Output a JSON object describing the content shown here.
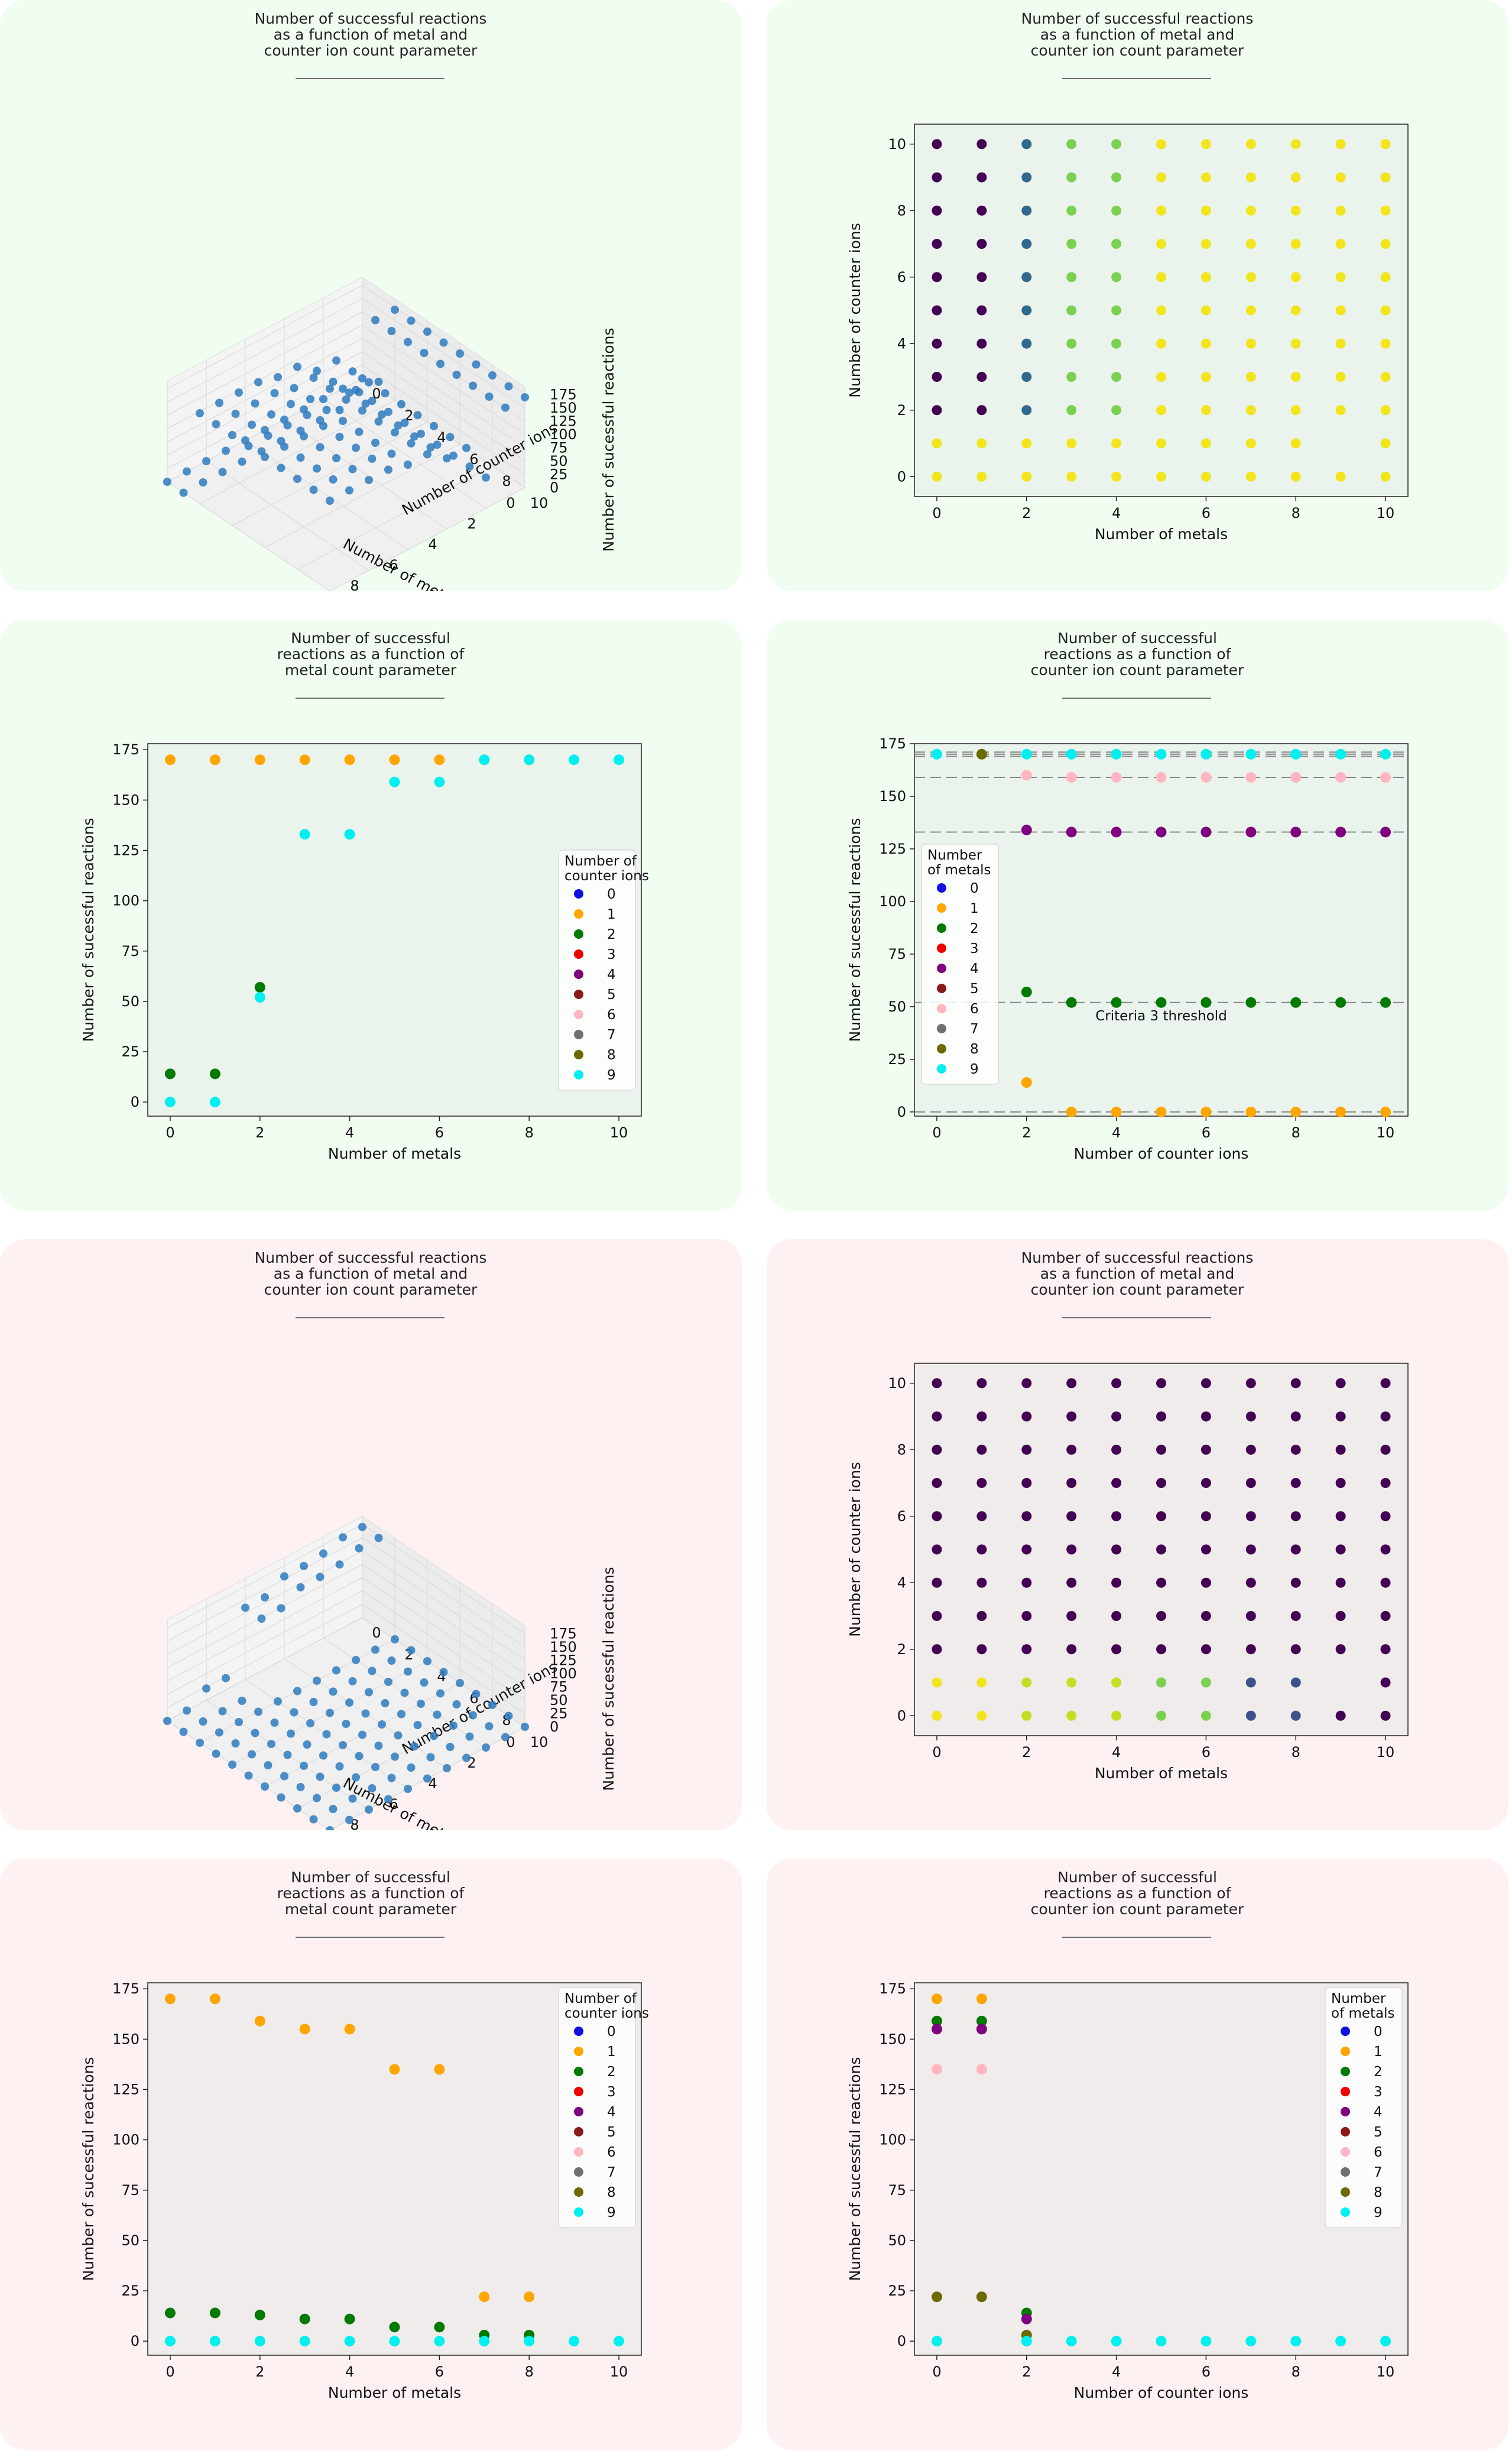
{
  "colors": {
    "legend": [
      "#1010e0",
      "#ffa500",
      "#007a00",
      "#ee0000",
      "#800080",
      "#8b1a1a",
      "#ffb6c1",
      "#707070",
      "#6b6b00",
      "#00f0f0"
    ],
    "scatter3d": "#2d7bbf",
    "green_bg": "#f2fdf2",
    "red_bg": "#fdf1f1"
  },
  "panels": [
    {
      "id": "p1",
      "title": [
        "Number of successful reactions",
        "as a function of metal and",
        "counter ion count parameter"
      ],
      "chart_data": {
        "type": "scatter3d",
        "xlabel": "Number of metals",
        "ylabel": "Number of counter ions",
        "zlabel": "Number of sucessful reactions",
        "x_ticks": [
          "0",
          "2",
          "4",
          "6",
          "8",
          "10"
        ],
        "y_ticks": [
          "0",
          "2",
          "4",
          "6",
          "8",
          "10"
        ],
        "z_ticks": [
          "0",
          "25",
          "50",
          "75",
          "100",
          "125",
          "150",
          "175"
        ],
        "zlim": [
          0,
          175
        ],
        "rule": "z(m,c): c==0 -> 0; c==1 -> 14 for m<=1 else 0; c>=2 -> [58,58,58,133,133,160,160,170,170,170,170][m] with m<=1 and c>=2 -> 170"
      }
    },
    {
      "id": "p2",
      "title": [
        "Number of successful reactions",
        "as a function of metal and",
        "counter ion count parameter"
      ],
      "chart_data": {
        "type": "scatter",
        "xlabel": "Number of metals",
        "ylabel": "Number of counter ions",
        "x_ticks": [
          "0",
          "2",
          "4",
          "6",
          "8",
          "10"
        ],
        "y_ticks": [
          "0",
          "2",
          "4",
          "6",
          "8",
          "10"
        ],
        "xlim": [
          -0.5,
          10.5
        ],
        "ylim": [
          -0.6,
          10.6
        ],
        "color_rows_bottom_to_top": [
          "YYYYYYYYYYY",
          "YYYYYYYYY-Y",
          "PPBGGYYYYYY",
          "PPBGGYYYYYY",
          "PPBGGYYYYYY",
          "PPBGGYYYYYY",
          "PPBGGYYYYYY",
          "PPBGGYYYYYY",
          "PPBGGYYYYYY",
          "PPBGGYYYYYY",
          "PPBGGYYYYYY"
        ],
        "color_map": {
          "Y": "#f2e51d",
          "P": "#440154",
          "B": "#31688e",
          "G": "#7ad151",
          "L": "#c2df23",
          "T": "#3b528b"
        }
      }
    },
    {
      "id": "p3",
      "title": [
        "Number of successful",
        "reactions as a function of",
        "metal count parameter"
      ],
      "chart_data": {
        "type": "scatter",
        "xlabel": "Number of metals",
        "ylabel": "Number of sucessful reactions",
        "x_ticks": [
          "0",
          "2",
          "4",
          "6",
          "8",
          "10"
        ],
        "y_ticks": [
          "0",
          "25",
          "50",
          "75",
          "100",
          "125",
          "150",
          "175"
        ],
        "xlim": [
          -0.5,
          10.5
        ],
        "ylim": [
          -7,
          178
        ],
        "legend_title": [
          "Number of",
          "counter ions"
        ],
        "legend_labels": [
          "0",
          "1",
          "2",
          "3",
          "4",
          "5",
          "6",
          "7",
          "8",
          "9"
        ],
        "legend_position": "center-right",
        "series": [
          {
            "name": "1",
            "x": [
              0,
              1,
              2,
              3,
              4,
              5,
              6,
              7,
              8
            ],
            "y": [
              170,
              170,
              170,
              170,
              170,
              170,
              170,
              170,
              170
            ]
          },
          {
            "name": "2",
            "x": [
              0,
              1,
              2
            ],
            "y": [
              14,
              14,
              57
            ]
          },
          {
            "name": "9",
            "x": [
              0,
              1,
              2,
              3,
              4,
              5,
              6,
              7,
              8,
              9,
              10
            ],
            "y": [
              0,
              0,
              52,
              133,
              133,
              159,
              159,
              170,
              170,
              170,
              170
            ]
          }
        ]
      }
    },
    {
      "id": "p4",
      "title": [
        "Number of successful",
        "reactions as a function of",
        "counter ion count parameter"
      ],
      "chart_data": {
        "type": "scatter",
        "xlabel": "Number of counter ions",
        "ylabel": "Number of sucessful reactions",
        "x_ticks": [
          "0",
          "2",
          "4",
          "6",
          "8",
          "10"
        ],
        "y_ticks": [
          "0",
          "25",
          "50",
          "75",
          "100",
          "125",
          "150",
          "175"
        ],
        "xlim": [
          -0.5,
          10.5
        ],
        "ylim": [
          -2,
          175
        ],
        "legend_title": [
          "Number",
          "of metals"
        ],
        "legend_labels": [
          "0",
          "1",
          "2",
          "3",
          "4",
          "5",
          "6",
          "7",
          "8",
          "9"
        ],
        "legend_position": "center-left",
        "hlines": [
          0,
          52,
          133,
          159,
          169,
          170,
          171
        ],
        "annotation": "Criteria 3 threshold",
        "series": [
          {
            "name": "1",
            "x": [
              2,
              3,
              4,
              5,
              6,
              7,
              8,
              9,
              10
            ],
            "y": [
              14,
              0,
              0,
              0,
              0,
              0,
              0,
              0,
              0
            ]
          },
          {
            "name": "2",
            "x": [
              2,
              3,
              4,
              5,
              6,
              7,
              8,
              9,
              10
            ],
            "y": [
              57,
              52,
              52,
              52,
              52,
              52,
              52,
              52,
              52
            ]
          },
          {
            "name": "4",
            "x": [
              2,
              3,
              4,
              5,
              6,
              7,
              8,
              9,
              10
            ],
            "y": [
              134,
              133,
              133,
              133,
              133,
              133,
              133,
              133,
              133
            ]
          },
          {
            "name": "6",
            "x": [
              2,
              3,
              4,
              5,
              6,
              7,
              8,
              9,
              10
            ],
            "y": [
              160,
              159,
              159,
              159,
              159,
              159,
              159,
              159,
              159
            ]
          },
          {
            "name": "8",
            "x": [
              1
            ],
            "y": [
              170
            ]
          },
          {
            "name": "9",
            "x": [
              0,
              2,
              3,
              4,
              5,
              6,
              7,
              8,
              9,
              10
            ],
            "y": [
              170,
              170,
              170,
              170,
              170,
              170,
              170,
              170,
              170,
              170
            ]
          }
        ]
      }
    },
    {
      "id": "p5",
      "title": [
        "Number of successful reactions",
        "as a function of metal and",
        "counter ion count parameter"
      ],
      "chart_data": {
        "type": "scatter3d",
        "xlabel": "Number of metals",
        "ylabel": "Number of counter ions",
        "zlabel": "Number of sucessful reactions",
        "x_ticks": [
          "0",
          "2",
          "4",
          "6",
          "8",
          "10"
        ],
        "y_ticks": [
          "0",
          "2",
          "4",
          "6",
          "8",
          "10"
        ],
        "z_ticks": [
          "0",
          "25",
          "50",
          "75",
          "100",
          "125",
          "150",
          "175"
        ],
        "zlim": [
          0,
          175
        ],
        "rule": "z(m,c): c==0 -> [170,170,159,155,155,135,135,22,22,0,0][m]; c==1 -> same but 0 for m>=7; c>=2 -> 0"
      }
    },
    {
      "id": "p6",
      "title": [
        "Number of successful reactions",
        "as a function of metal and",
        "counter ion count parameter"
      ],
      "chart_data": {
        "type": "scatter",
        "xlabel": "Number of metals",
        "ylabel": "Number of counter ions",
        "x_ticks": [
          "0",
          "2",
          "4",
          "6",
          "8",
          "10"
        ],
        "y_ticks": [
          "0",
          "2",
          "4",
          "6",
          "8",
          "10"
        ],
        "xlim": [
          -0.5,
          10.5
        ],
        "ylim": [
          -0.6,
          10.6
        ],
        "color_rows_bottom_to_top": [
          "YYLLLGGTTPP",
          "YYLLLGGTT-P",
          "PPPPPPPPPPP",
          "PPPPPPPPPPP",
          "PPPPPPPPPPP",
          "PPPPPPPPPPP",
          "PPPPPPPPPPP",
          "PPPPPPPPPPP",
          "PPPPPPPPPPP",
          "PPPPPPPPPPP",
          "PPPPPPPPPPP"
        ],
        "color_map": {
          "Y": "#f2e51d",
          "P": "#440154",
          "B": "#31688e",
          "G": "#7ad151",
          "L": "#c2df23",
          "T": "#3b528b"
        }
      }
    },
    {
      "id": "p7",
      "title": [
        "Number of successful",
        "reactions as a function of",
        "metal count parameter"
      ],
      "chart_data": {
        "type": "scatter",
        "xlabel": "Number of metals",
        "ylabel": "Number of sucessful reactions",
        "x_ticks": [
          "0",
          "2",
          "4",
          "6",
          "8",
          "10"
        ],
        "y_ticks": [
          "0",
          "25",
          "50",
          "75",
          "100",
          "125",
          "150",
          "175"
        ],
        "xlim": [
          -0.5,
          10.5
        ],
        "ylim": [
          -7,
          178
        ],
        "legend_title": [
          "Number of",
          "counter ions"
        ],
        "legend_labels": [
          "0",
          "1",
          "2",
          "3",
          "4",
          "5",
          "6",
          "7",
          "8",
          "9"
        ],
        "legend_position": "top-right",
        "series": [
          {
            "name": "1",
            "x": [
              0,
              1,
              2,
              3,
              4,
              5,
              6,
              7,
              8
            ],
            "y": [
              170,
              170,
              159,
              155,
              155,
              135,
              135,
              22,
              22
            ]
          },
          {
            "name": "2",
            "x": [
              0,
              1,
              2,
              3,
              4,
              5,
              6,
              7,
              8
            ],
            "y": [
              14,
              14,
              13,
              11,
              11,
              7,
              7,
              3,
              3
            ]
          },
          {
            "name": "9",
            "x": [
              0,
              1,
              2,
              3,
              4,
              5,
              6,
              7,
              8,
              9,
              10
            ],
            "y": [
              0,
              0,
              0,
              0,
              0,
              0,
              0,
              0,
              0,
              0,
              0
            ]
          }
        ]
      }
    },
    {
      "id": "p8",
      "title": [
        "Number of successful",
        "reactions as a function of",
        "counter ion count parameter"
      ],
      "chart_data": {
        "type": "scatter",
        "xlabel": "Number of counter ions",
        "ylabel": "Number of sucessful reactions",
        "x_ticks": [
          "0",
          "2",
          "4",
          "6",
          "8",
          "10"
        ],
        "y_ticks": [
          "0",
          "25",
          "50",
          "75",
          "100",
          "125",
          "150",
          "175"
        ],
        "xlim": [
          -0.5,
          10.5
        ],
        "ylim": [
          -7,
          178
        ],
        "legend_title": [
          "Number",
          "of metals"
        ],
        "legend_labels": [
          "0",
          "1",
          "2",
          "3",
          "4",
          "5",
          "6",
          "7",
          "8",
          "9"
        ],
        "legend_position": "top-right",
        "series": [
          {
            "name": "1",
            "x": [
              0,
              1
            ],
            "y": [
              170,
              170
            ]
          },
          {
            "name": "2",
            "x": [
              0,
              1,
              2
            ],
            "y": [
              159,
              159,
              14
            ]
          },
          {
            "name": "4",
            "x": [
              0,
              1,
              2
            ],
            "y": [
              155,
              155,
              11
            ]
          },
          {
            "name": "6",
            "x": [
              0,
              1
            ],
            "y": [
              135,
              135
            ]
          },
          {
            "name": "8",
            "x": [
              0,
              1,
              2
            ],
            "y": [
              22,
              22,
              3
            ]
          },
          {
            "name": "9",
            "x": [
              0,
              2,
              3,
              4,
              5,
              6,
              7,
              8,
              9,
              10
            ],
            "y": [
              0,
              0,
              0,
              0,
              0,
              0,
              0,
              0,
              0,
              0
            ]
          }
        ]
      }
    }
  ]
}
